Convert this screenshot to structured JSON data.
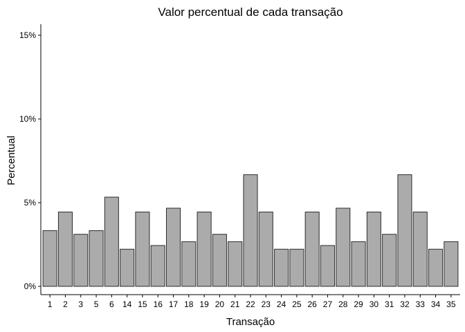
{
  "chart_data": {
    "type": "bar",
    "title": "Valor percentual de cada transação",
    "xlabel": "Transação",
    "ylabel": "Percentual",
    "categories": [
      "1",
      "2",
      "3",
      "5",
      "6",
      "14",
      "15",
      "16",
      "17",
      "18",
      "19",
      "20",
      "21",
      "22",
      "23",
      "24",
      "25",
      "26",
      "27",
      "28",
      "29",
      "30",
      "31",
      "32",
      "33",
      "34",
      "35"
    ],
    "values": [
      3.33,
      4.44,
      3.11,
      3.33,
      5.33,
      2.22,
      4.44,
      2.44,
      4.67,
      2.67,
      4.44,
      3.11,
      2.67,
      6.67,
      4.44,
      2.22,
      2.22,
      4.44,
      2.44,
      4.67,
      2.67,
      4.44,
      3.11,
      6.67,
      4.44,
      2.22,
      2.67
    ],
    "value_unit": "%",
    "ylim": [
      0,
      15.5
    ],
    "yticks": [
      0,
      5,
      10,
      15
    ],
    "ytick_labels": [
      "0%",
      "5%",
      "10%",
      "15%"
    ],
    "grid": false,
    "legend": "none",
    "colors": {
      "bar_fill": "#ababab",
      "bar_stroke": "#2b2b2b",
      "axis": "#000000"
    }
  }
}
